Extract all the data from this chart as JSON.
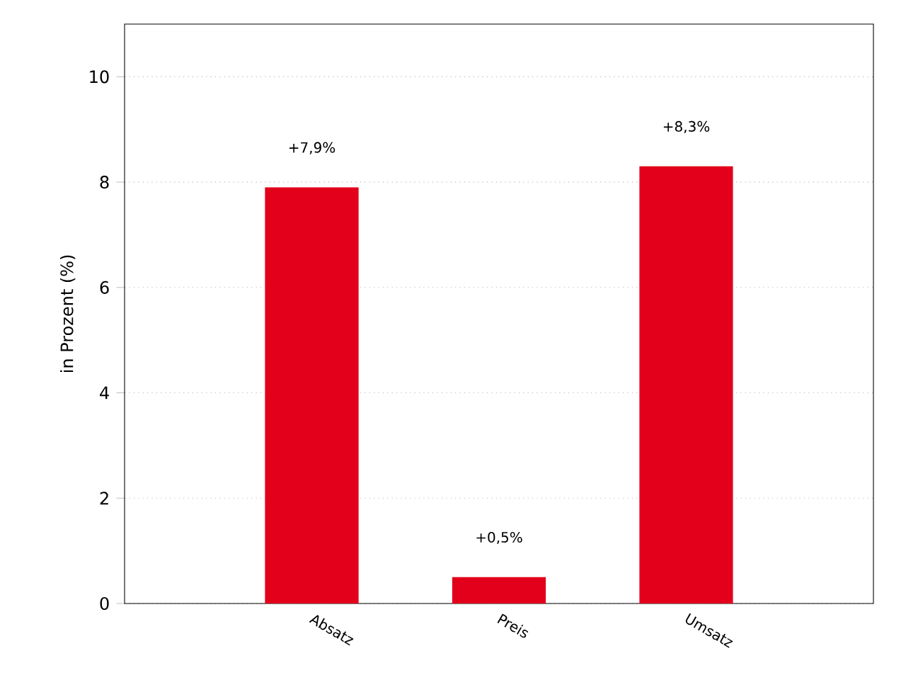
{
  "chart_data": {
    "type": "bar",
    "ylabel": "in Prozent (%)",
    "categories": [
      "Absatz",
      "Preis",
      "Umsatz"
    ],
    "values": [
      7.9,
      0.5,
      8.3
    ],
    "value_labels": [
      "+7,9%",
      "+0,5%",
      "+8,3%"
    ],
    "color": "#e2001a",
    "ylim": [
      0,
      11
    ],
    "yticks": [
      0,
      2,
      4,
      6,
      8,
      10
    ],
    "grid": "y"
  }
}
